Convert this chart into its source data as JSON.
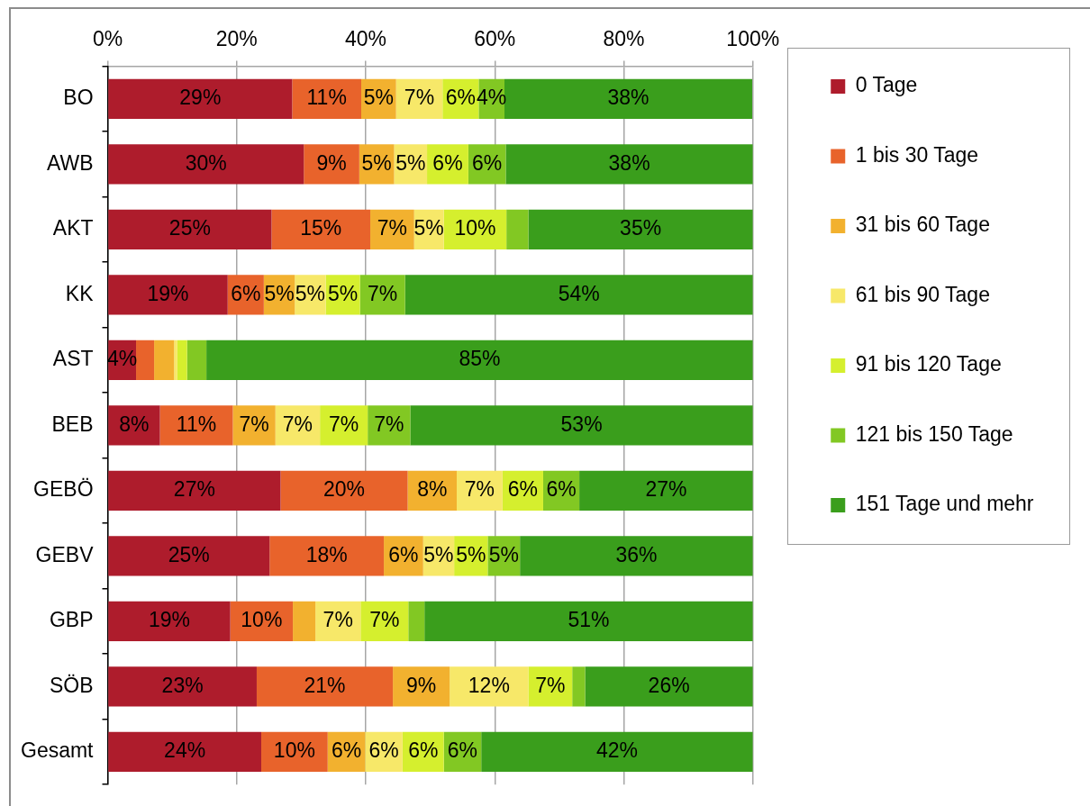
{
  "chart_data": {
    "type": "bar",
    "orientation": "horizontal",
    "stacked": true,
    "grid": "x",
    "legend": "right",
    "categories": [
      "BO",
      "AWB",
      "AKT",
      "KK",
      "AST",
      "BEB",
      "GEBÖ",
      "GEBV",
      "GBP",
      "SÖB",
      "Gesamt"
    ],
    "xlim": [
      0,
      100
    ],
    "xticks": [
      {
        "value": 0,
        "label": "0%"
      },
      {
        "value": 20,
        "label": "20%"
      },
      {
        "value": 40,
        "label": "40%"
      },
      {
        "value": 60,
        "label": "60%"
      },
      {
        "value": 80,
        "label": "80%"
      },
      {
        "value": 100,
        "label": "100%"
      }
    ],
    "series": [
      {
        "name": "0 Tage",
        "color": "#ae1c2c",
        "values": [
          28.6,
          30.4,
          25.4,
          18.6,
          4.4,
          8.1,
          26.8,
          25.1,
          19.0,
          23.1,
          23.8
        ],
        "value_labels": [
          "29%",
          "30%",
          "25%",
          "19%",
          "4%",
          "8%",
          "27%",
          "25%",
          "19%",
          "23%",
          "24%"
        ]
      },
      {
        "name": "1 bis 30 Tage",
        "color": "#e8632b",
        "values": [
          10.7,
          8.6,
          15.3,
          5.6,
          2.8,
          11.3,
          19.7,
          17.7,
          9.7,
          21.1,
          10.3
        ],
        "value_labels": [
          "11%",
          "9%",
          "15%",
          "6%",
          null,
          "11%",
          "20%",
          "18%",
          "10%",
          "21%",
          "10%"
        ]
      },
      {
        "name": "31 bis 60 Tage",
        "color": "#f2b12f",
        "values": [
          5.4,
          5.4,
          6.8,
          4.8,
          3.1,
          6.6,
          7.6,
          6.1,
          3.5,
          8.8,
          5.8
        ],
        "value_labels": [
          "5%",
          "5%",
          "7%",
          "5%",
          null,
          "7%",
          "8%",
          "6%",
          null,
          "9%",
          "6%"
        ]
      },
      {
        "name": "61 bis 90 Tage",
        "color": "#f7e869",
        "values": [
          7.2,
          5.1,
          4.6,
          4.8,
          0.5,
          6.9,
          7.1,
          4.8,
          7.0,
          12.2,
          5.8
        ],
        "value_labels": [
          "7%",
          "5%",
          "5%",
          "5%",
          null,
          "7%",
          "7%",
          "5%",
          "7%",
          "12%",
          "6%"
        ]
      },
      {
        "name": "91 bis 120 Tage",
        "color": "#d5ef2e",
        "values": [
          5.6,
          6.4,
          9.7,
          5.3,
          1.5,
          7.4,
          6.3,
          5.2,
          7.4,
          6.8,
          6.4
        ],
        "value_labels": [
          "6%",
          "6%",
          "10%",
          "5%",
          null,
          "7%",
          "6%",
          "5%",
          "7%",
          "7%",
          "6%"
        ]
      },
      {
        "name": "121 bis 150 Tage",
        "color": "#82c823",
        "values": [
          4.0,
          5.8,
          3.4,
          7.0,
          3.0,
          6.6,
          5.6,
          5.0,
          2.5,
          2.0,
          5.8
        ],
        "value_labels": [
          "4%",
          "6%",
          null,
          "7%",
          null,
          "7%",
          "6%",
          "5%",
          null,
          null,
          "6%"
        ]
      },
      {
        "name": "151 Tage und mehr",
        "color": "#3a9e1c",
        "values": [
          38.4,
          38.3,
          34.8,
          53.9,
          84.7,
          53.1,
          26.9,
          36.1,
          50.9,
          26.0,
          42.1
        ],
        "value_labels": [
          "38%",
          "38%",
          "35%",
          "54%",
          "85%",
          "53%",
          "27%",
          "36%",
          "51%",
          "26%",
          "42%"
        ]
      }
    ]
  }
}
